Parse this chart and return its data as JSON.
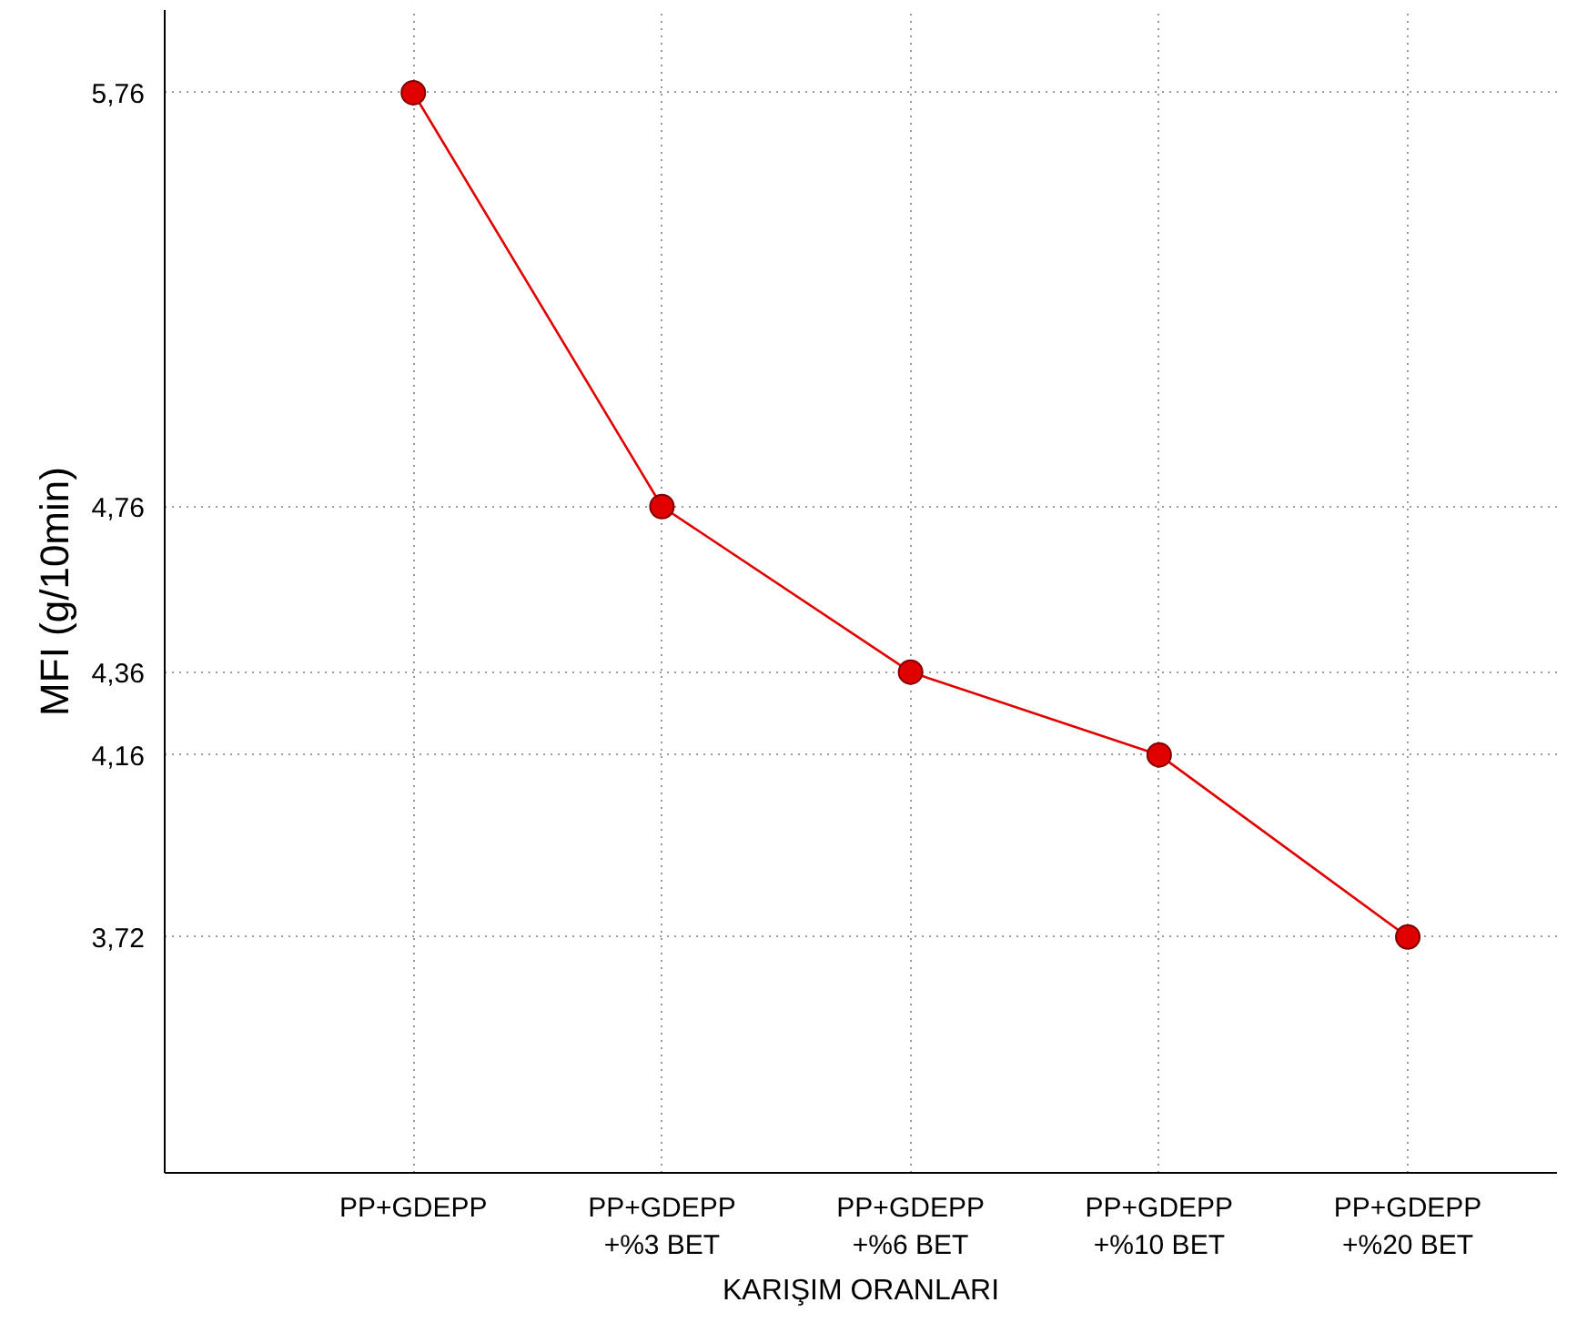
{
  "chart_data": {
    "type": "line",
    "xlabel": "KARIŞIM ORANLARI",
    "ylabel": "MFI (g/10min)",
    "categories": [
      "PP+GDEPP",
      "PP+GDEPP\n+%3 BET",
      "PP+GDEPP\n+%6 BET",
      "PP+GDEPP\n+%10 BET",
      "PP+GDEPP\n+%20 BET"
    ],
    "series": [
      {
        "color": "#e00000",
        "values": [
          5.76,
          4.76,
          4.36,
          4.16,
          3.72
        ]
      }
    ],
    "ylim": [
      3.15,
      5.96
    ],
    "yticks": [
      {
        "value": 3.72,
        "label": "3,72"
      },
      {
        "value": 4.16,
        "label": "4,16"
      },
      {
        "value": 4.36,
        "label": "4,36"
      },
      {
        "value": 4.76,
        "label": "4,76"
      },
      {
        "value": 5.76,
        "label": "5,76"
      }
    ],
    "grid": true,
    "marker": "circle",
    "line_style": "solid"
  }
}
